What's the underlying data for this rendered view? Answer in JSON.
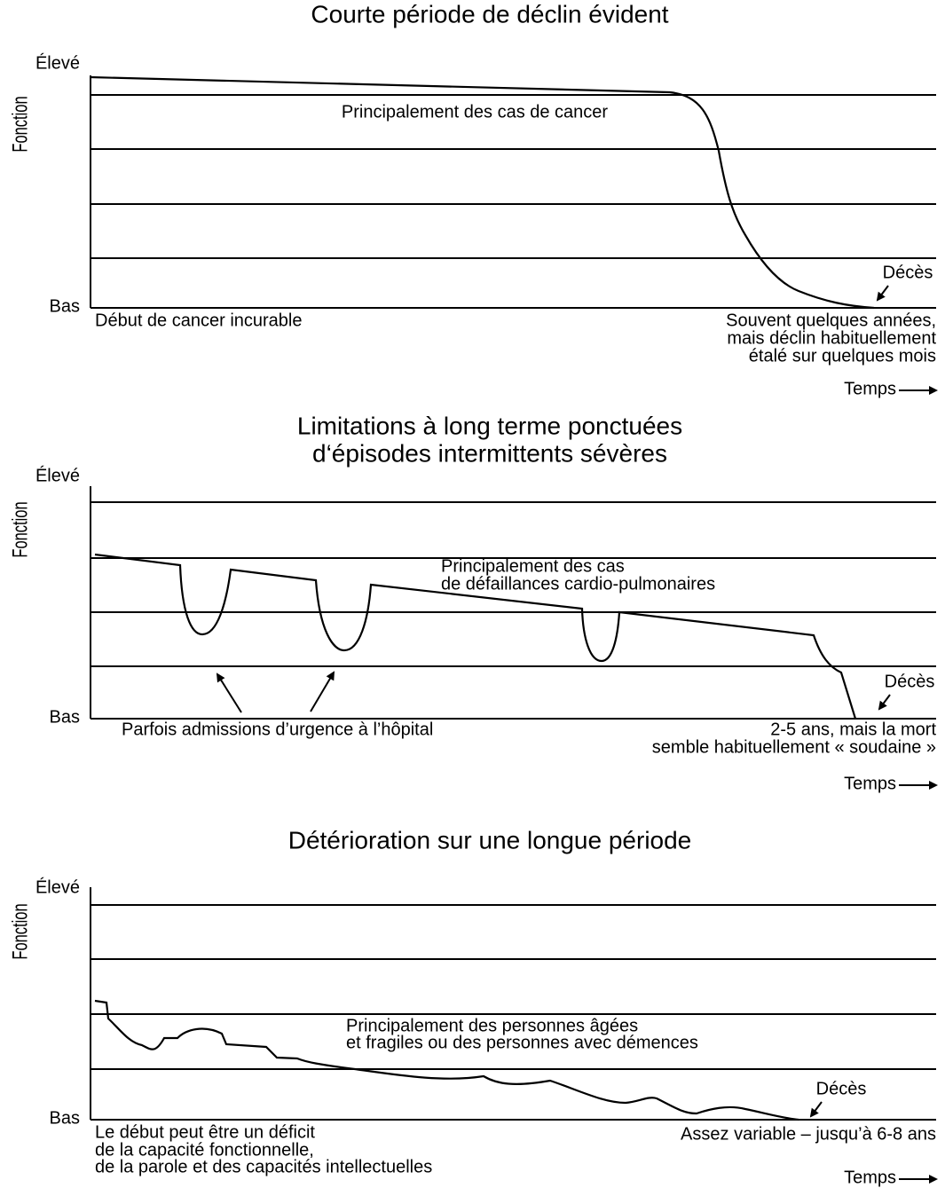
{
  "panels": [
    {
      "title": [
        "Courte période de déclin évident"
      ],
      "high": "Élevé",
      "low": "Bas",
      "y_label": "Fonction",
      "note": [
        "Principalement des cas de cancer"
      ],
      "start": [
        "Début de cancer incurable"
      ],
      "end": [
        "Souvent quelques années,",
        "mais déclin habituellement",
        "étalé sur quelques mois"
      ],
      "death": "Décès",
      "time": "Temps"
    },
    {
      "title": [
        "Limitations à long terme ponctuées",
        "d‘épisodes intermittents sévères"
      ],
      "high": "Élevé",
      "low": "Bas",
      "y_label": "Fonction",
      "note": [
        "Principalement des cas",
        "de défaillances cardio-pulmonaires"
      ],
      "start": [
        "Parfois admissions d’urgence à l’hôpital"
      ],
      "end": [
        "2-5 ans, mais la mort",
        "semble habituellement « soudaine »"
      ],
      "death": "Décès",
      "time": "Temps"
    },
    {
      "title": [
        "Détérioration sur une longue période"
      ],
      "high": "Élevé",
      "low": "Bas",
      "y_label": "Fonction",
      "note": [
        "Principalement des personnes âgées",
        "et fragiles ou des personnes avec démences"
      ],
      "start": [
        "Le début peut être un déficit",
        "de la capacité fonctionnelle,",
        "de la parole et des capacités intellectuelles"
      ],
      "end": [
        "Assez variable – jusqu’à 6-8 ans"
      ],
      "death": "Décès",
      "time": "Temps"
    }
  ]
}
